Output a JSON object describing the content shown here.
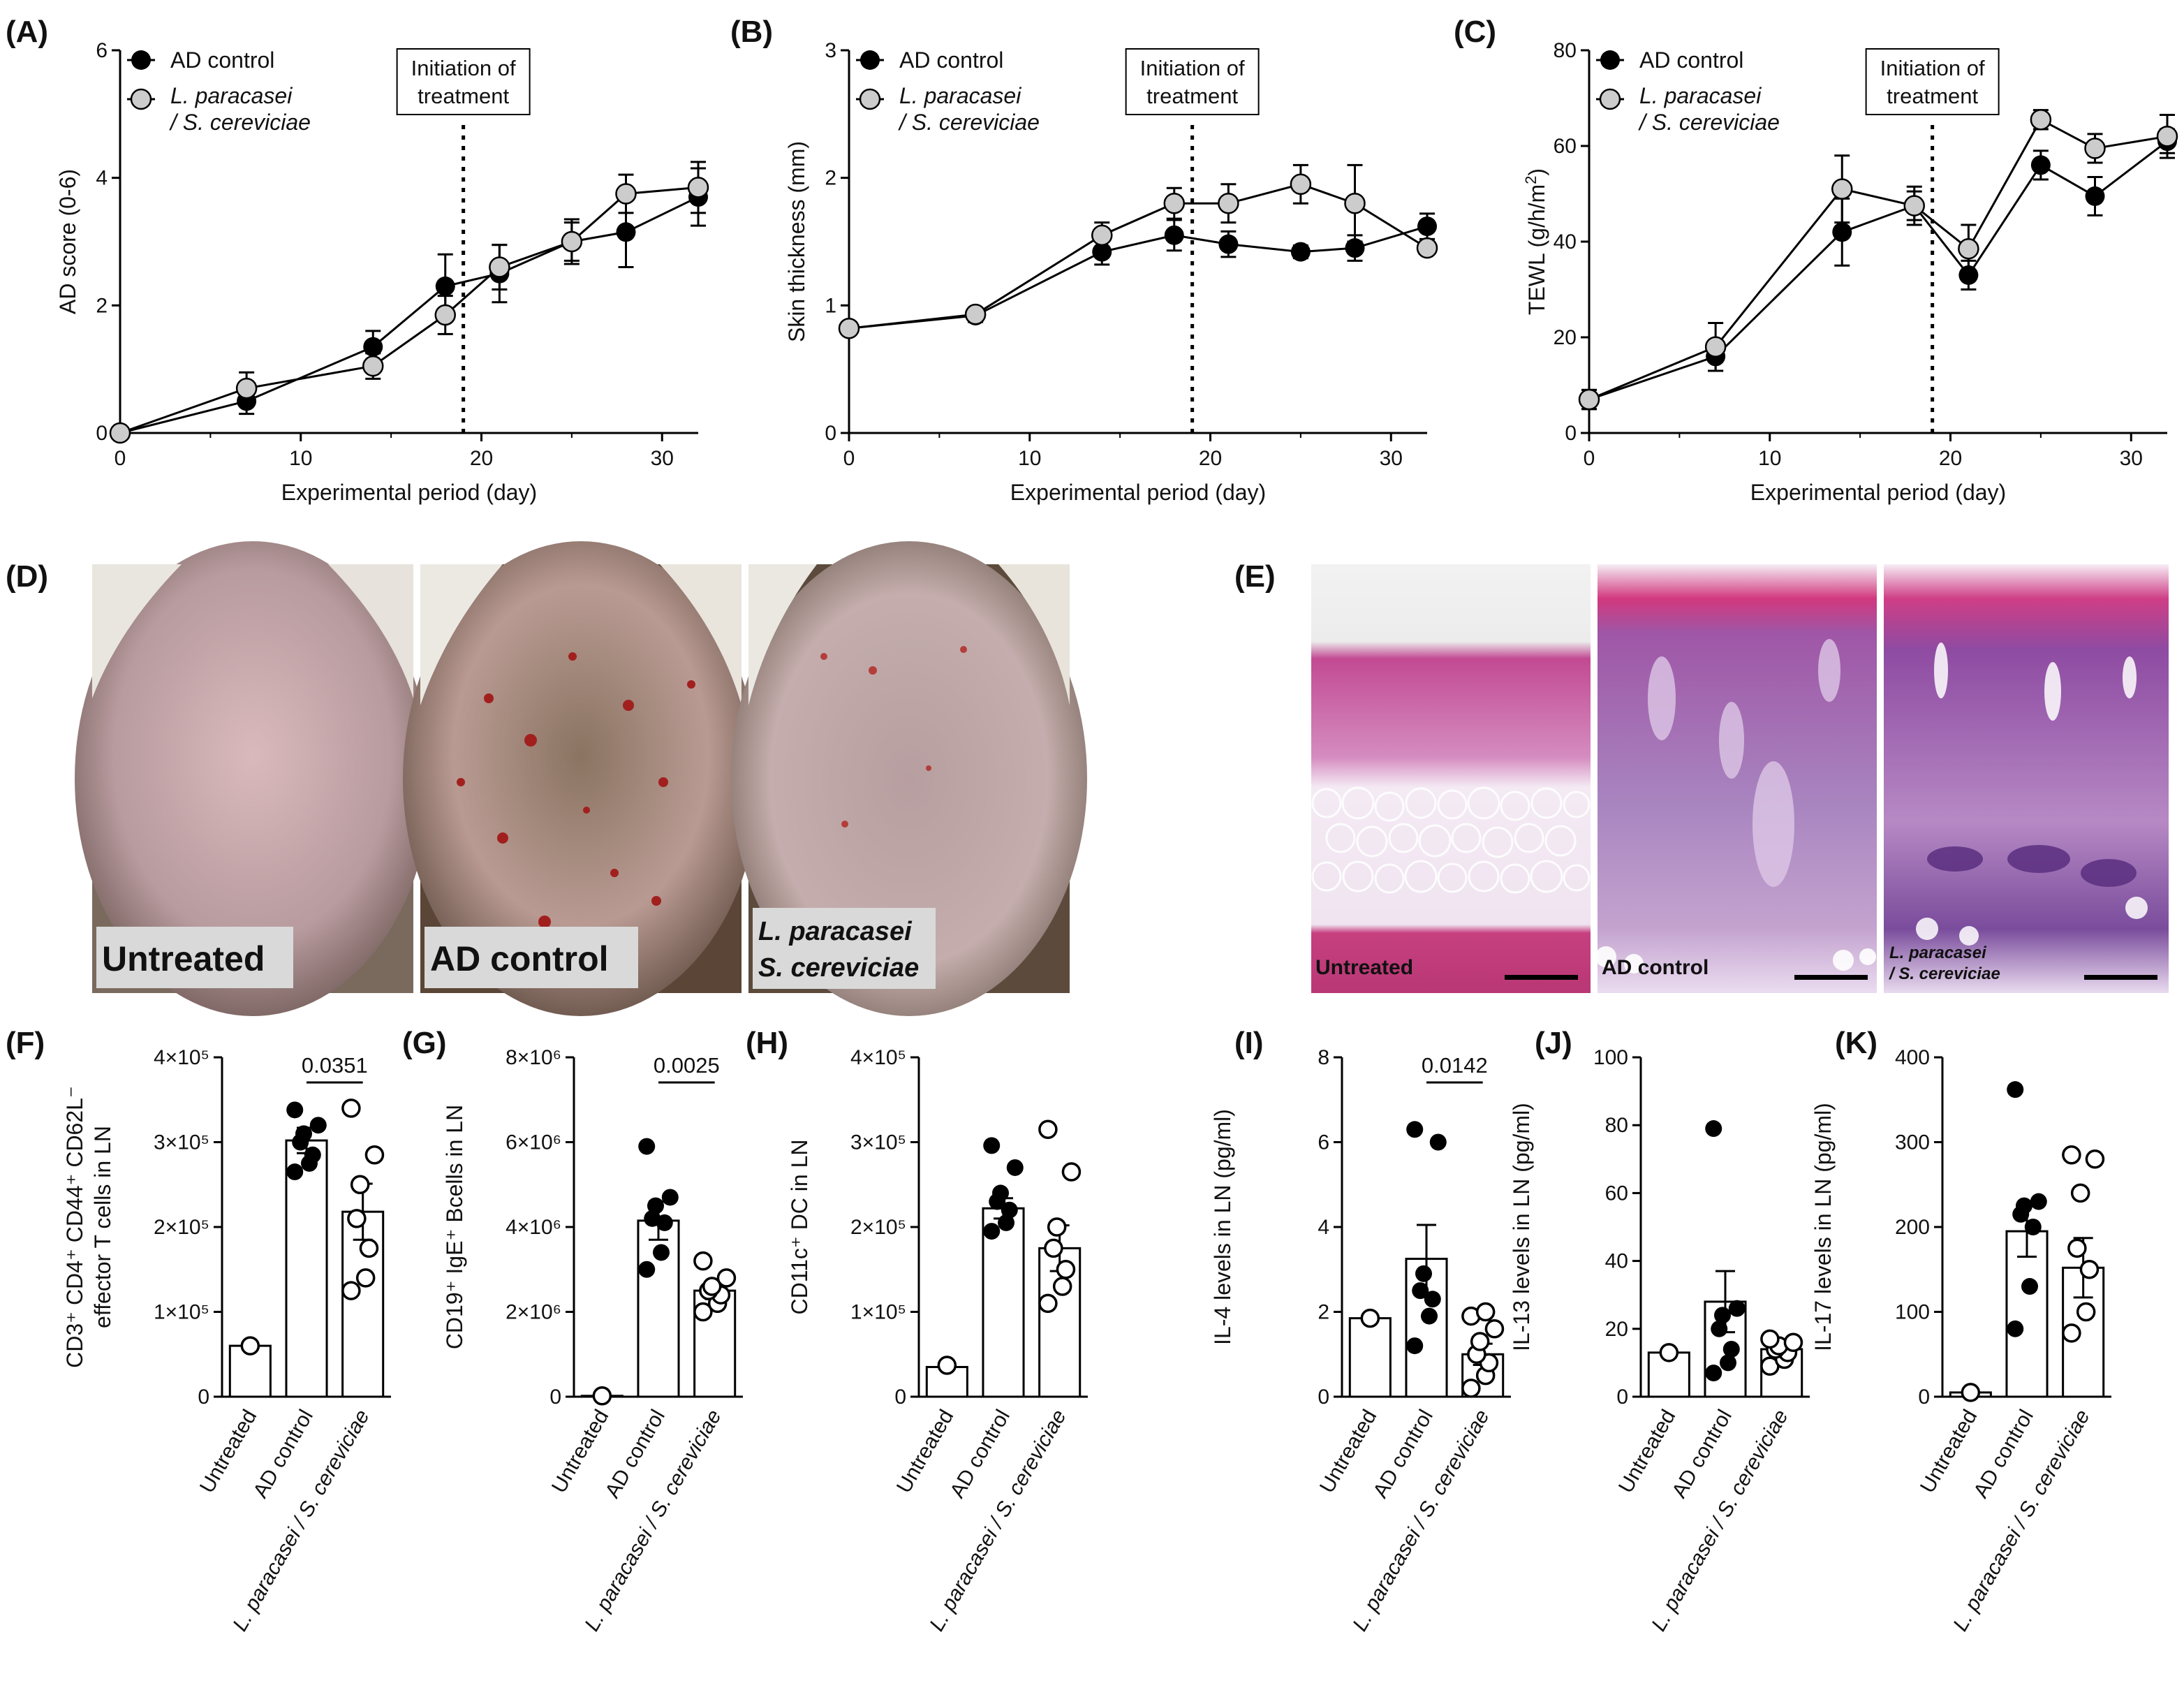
{
  "figure": {
    "panels": {
      "A": {
        "letter": "(A)"
      },
      "B": {
        "letter": "(B)"
      },
      "C": {
        "letter": "(C)"
      },
      "D": {
        "letter": "(D)"
      },
      "E": {
        "letter": "(E)"
      },
      "F": {
        "letter": "(F)"
      },
      "G": {
        "letter": "(G)"
      },
      "H": {
        "letter": "(H)"
      },
      "I": {
        "letter": "(I)"
      },
      "J": {
        "letter": "(J)"
      },
      "K": {
        "letter": "(K)"
      }
    },
    "legend": {
      "ad_control": "AD control",
      "treatment_line1": "L. paracasei",
      "treatment_line2": "/ S. cereviciae"
    },
    "annotation": {
      "line1": "Initiation of",
      "line2": "treatment"
    },
    "photos": {
      "untreated": "Untreated",
      "ad_control": "AD control",
      "treated_line1": "L. paracasei",
      "treated_line2": "S. cereviciae"
    },
    "histology": {
      "untreated": "Untreated",
      "ad_control": "AD control",
      "treated_line1": "L. paracasei",
      "treated_line2": "/ S. cereviciae"
    },
    "bar_categories": [
      "Untreated",
      "AD control",
      "L. paracasei / S. cereviciae"
    ],
    "colors": {
      "filled": "#000000",
      "open": "#ffffff",
      "grey": "#cccccc",
      "skin_pink": "#c9a9ab",
      "he_pink": "#c64c9c"
    }
  },
  "chart_data": [
    {
      "panel": "A",
      "type": "line",
      "xlabel": "Experimental period (day)",
      "ylabel": "AD score (0-6)",
      "xlim": [
        0,
        32
      ],
      "ylim": [
        0,
        6
      ],
      "xticks": [
        "0",
        "10",
        "20",
        "30"
      ],
      "yticks": [
        "0",
        "2",
        "4",
        "6"
      ],
      "x": [
        0,
        7,
        14,
        18,
        21,
        25,
        28,
        32
      ],
      "treatment_start_day": 19,
      "series": [
        {
          "name": "AD control",
          "values": [
            0,
            0.5,
            1.35,
            2.3,
            2.5,
            3.0,
            3.15,
            3.7
          ],
          "errors": [
            0,
            0.2,
            0.25,
            0.5,
            0.45,
            0.35,
            0.55,
            0.45
          ]
        },
        {
          "name": "L. paracasei / S. cereviciae",
          "values": [
            0,
            0.7,
            1.05,
            1.85,
            2.6,
            3.0,
            3.75,
            3.85
          ],
          "errors": [
            0,
            0.25,
            0.2,
            0.3,
            0.35,
            0.3,
            0.3,
            0.4
          ]
        }
      ]
    },
    {
      "panel": "B",
      "type": "line",
      "xlabel": "Experimental period (day)",
      "ylabel": "Skin thickness (mm)",
      "xlim": [
        0,
        32
      ],
      "ylim": [
        0,
        3
      ],
      "xticks": [
        "0",
        "10",
        "20",
        "30"
      ],
      "yticks": [
        "0",
        "1",
        "2",
        "3"
      ],
      "x": [
        0,
        7,
        14,
        18,
        21,
        25,
        28,
        32
      ],
      "treatment_start_day": 19,
      "series": [
        {
          "name": "AD control",
          "values": [
            0.82,
            0.92,
            1.42,
            1.55,
            1.48,
            1.42,
            1.45,
            1.62
          ],
          "errors": [
            0,
            0.05,
            0.1,
            0.12,
            0.1,
            0.05,
            0.1,
            0.1
          ]
        },
        {
          "name": "L. paracasei / S. cereviciae",
          "values": [
            0.82,
            0.93,
            1.55,
            1.8,
            1.8,
            1.95,
            1.8,
            1.45
          ],
          "errors": [
            0,
            0.05,
            0.1,
            0.12,
            0.15,
            0.15,
            0.3,
            0.05
          ]
        }
      ]
    },
    {
      "panel": "C",
      "type": "line",
      "xlabel": "Experimental period (day)",
      "ylabel": "TEWL (g/h/m",
      "ylabel_superscript": "2",
      "ylabel_suffix": ")",
      "xlim": [
        0,
        32
      ],
      "ylim": [
        0,
        80
      ],
      "xticks": [
        "0",
        "10",
        "20",
        "30"
      ],
      "yticks": [
        "0",
        "20",
        "40",
        "60",
        "80"
      ],
      "x": [
        0,
        7,
        14,
        18,
        21,
        25,
        28,
        32
      ],
      "treatment_start_day": 19,
      "series": [
        {
          "name": "AD control",
          "values": [
            7,
            16,
            42,
            47.5,
            33,
            56,
            49.5,
            61
          ],
          "errors": [
            2,
            3,
            7,
            4,
            3,
            3,
            4,
            2.5
          ]
        },
        {
          "name": "L. paracasei / S. cereviciae",
          "values": [
            7,
            18,
            51,
            47.5,
            38.5,
            65.5,
            59.5,
            62
          ],
          "errors": [
            2,
            5,
            7,
            3,
            5,
            2,
            3,
            4.5
          ]
        }
      ]
    },
    {
      "panel": "F",
      "type": "bar",
      "ylabel_line1": "CD3⁺ CD4⁺ CD44⁺ CD62L⁻",
      "ylabel_line2": "effector T cells in LN",
      "ylim": [
        0,
        400000
      ],
      "yticks": [
        "0",
        "1×10⁵",
        "2×10⁵",
        "3×10⁵",
        "4×10⁵"
      ],
      "p_value": "0.0351",
      "comparison": [
        1,
        2
      ],
      "means": [
        60000,
        302000,
        218000
      ],
      "sem": [
        0,
        15000,
        33000
      ],
      "points": [
        [
          60000
        ],
        [
          265000,
          275000,
          285000,
          300000,
          310000,
          320000,
          338000
        ],
        [
          125000,
          140000,
          175000,
          210000,
          250000,
          285000,
          340000
        ]
      ]
    },
    {
      "panel": "G",
      "type": "bar",
      "ylabel": "CD19⁺ IgE⁺ Bcells in LN",
      "ylim": [
        0,
        8000000
      ],
      "yticks": [
        "0",
        "2×10⁶",
        "4×10⁶",
        "6×10⁶",
        "8×10⁶"
      ],
      "p_value": "0.0025",
      "comparison": [
        1,
        2
      ],
      "means": [
        20000,
        4150000,
        2500000
      ],
      "sem": [
        0,
        450000,
        200000
      ],
      "points": [
        [
          20000
        ],
        [
          3000000,
          3400000,
          4100000,
          4200000,
          4500000,
          4700000,
          5900000
        ],
        [
          2000000,
          2200000,
          2400000,
          2500000,
          2600000,
          2800000,
          3200000
        ]
      ]
    },
    {
      "panel": "H",
      "type": "bar",
      "ylabel": "CD11c⁺ DC in LN",
      "ylim": [
        0,
        400000
      ],
      "yticks": [
        "0",
        "1×10⁵",
        "2×10⁵",
        "3×10⁵",
        "4×10⁵"
      ],
      "means": [
        35000,
        222000,
        175000
      ],
      "sem": [
        0,
        12000,
        27000
      ],
      "points": [
        [
          37000
        ],
        [
          195000,
          205000,
          220000,
          230000,
          240000,
          270000,
          296000
        ],
        [
          110000,
          130000,
          150000,
          175000,
          200000,
          265000,
          315000
        ]
      ]
    },
    {
      "panel": "I",
      "type": "bar",
      "ylabel": "IL-4 levels in LN (pg/ml)",
      "ylim": [
        0,
        8
      ],
      "yticks": [
        "0",
        "2",
        "4",
        "6",
        "8"
      ],
      "p_value": "0.0142",
      "comparison": [
        1,
        2
      ],
      "means": [
        1.85,
        3.25,
        1.0
      ],
      "sem": [
        0,
        0.8,
        0.25
      ],
      "points": [
        [
          1.85
        ],
        [
          1.2,
          1.9,
          2.3,
          2.5,
          2.9,
          6.0,
          6.3
        ],
        [
          0.2,
          0.5,
          0.8,
          1.0,
          1.3,
          1.6,
          1.9,
          2.0
        ]
      ]
    },
    {
      "panel": "J",
      "type": "bar",
      "ylabel": "IL-13 levels in LN (pg/ml)",
      "ylim": [
        0,
        100
      ],
      "yticks": [
        "0",
        "20",
        "40",
        "60",
        "80",
        "100"
      ],
      "means": [
        13,
        28,
        14
      ],
      "sem": [
        0,
        9,
        2
      ],
      "points": [
        [
          13
        ],
        [
          7,
          10,
          14,
          20,
          24,
          26,
          79
        ],
        [
          9,
          11,
          13,
          14,
          15,
          16,
          17
        ]
      ]
    },
    {
      "panel": "K",
      "type": "bar",
      "ylabel": "IL-17 levels in LN (pg/ml)",
      "ylim": [
        0,
        400
      ],
      "yticks": [
        "0",
        "100",
        "200",
        "300",
        "400"
      ],
      "means": [
        5,
        195,
        152
      ],
      "sem": [
        0,
        30,
        35
      ],
      "points": [
        [
          5
        ],
        [
          80,
          130,
          200,
          215,
          225,
          230,
          362
        ],
        [
          75,
          100,
          150,
          175,
          240,
          280,
          285
        ]
      ]
    }
  ]
}
